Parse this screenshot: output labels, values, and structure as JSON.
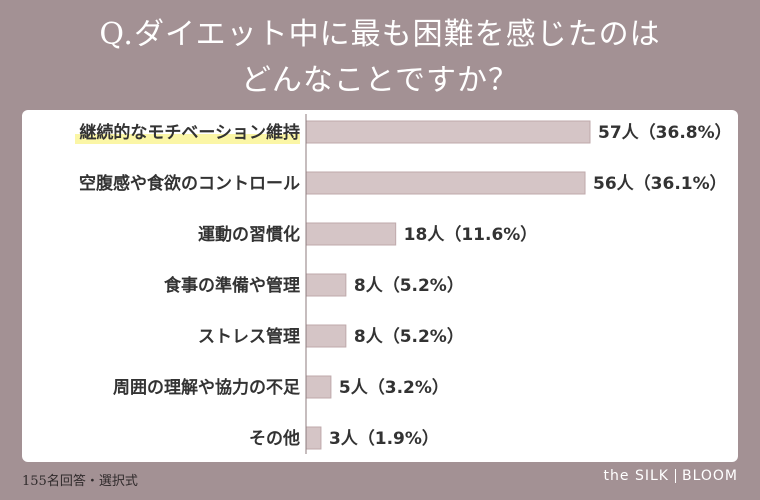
{
  "header": {
    "title_line1": "Q.ダイエット中に最も困難を感じたのは",
    "title_line2": "どんなことですか？"
  },
  "footer": {
    "note": "155名回答・選択式",
    "brand_left": "the SILK",
    "brand_right": "BLOOM"
  },
  "colors": {
    "background": "#a39194",
    "bar_fill": "#d5c5c6",
    "bar_edge": "#bfa9ab",
    "highlight": "#fbf6a6",
    "panel": "#ffffff"
  },
  "chart_data": {
    "type": "bar",
    "orientation": "horizontal",
    "unit": "人",
    "categories": [
      "継続的なモチベーション維持",
      "空腹感や食欲のコントロール",
      "運動の習慣化",
      "食事の準備や管理",
      "ストレス管理",
      "周囲の理解や協力の不足",
      "その他"
    ],
    "values": [
      57,
      56,
      18,
      8,
      8,
      5,
      3
    ],
    "percentages": [
      "36.8%",
      "36.1%",
      "11.6%",
      "5.2%",
      "5.2%",
      "3.2%",
      "1.9%"
    ],
    "value_labels": [
      "57人（36.8%）",
      "56人（36.1%）",
      "18人（11.6%）",
      "8人（5.2%）",
      "8人（5.2%）",
      "5人（3.2%）",
      "3人（1.9%）"
    ],
    "highlighted_category_index": 0,
    "xlim": [
      0,
      57
    ],
    "grid": false,
    "legend": "none"
  }
}
